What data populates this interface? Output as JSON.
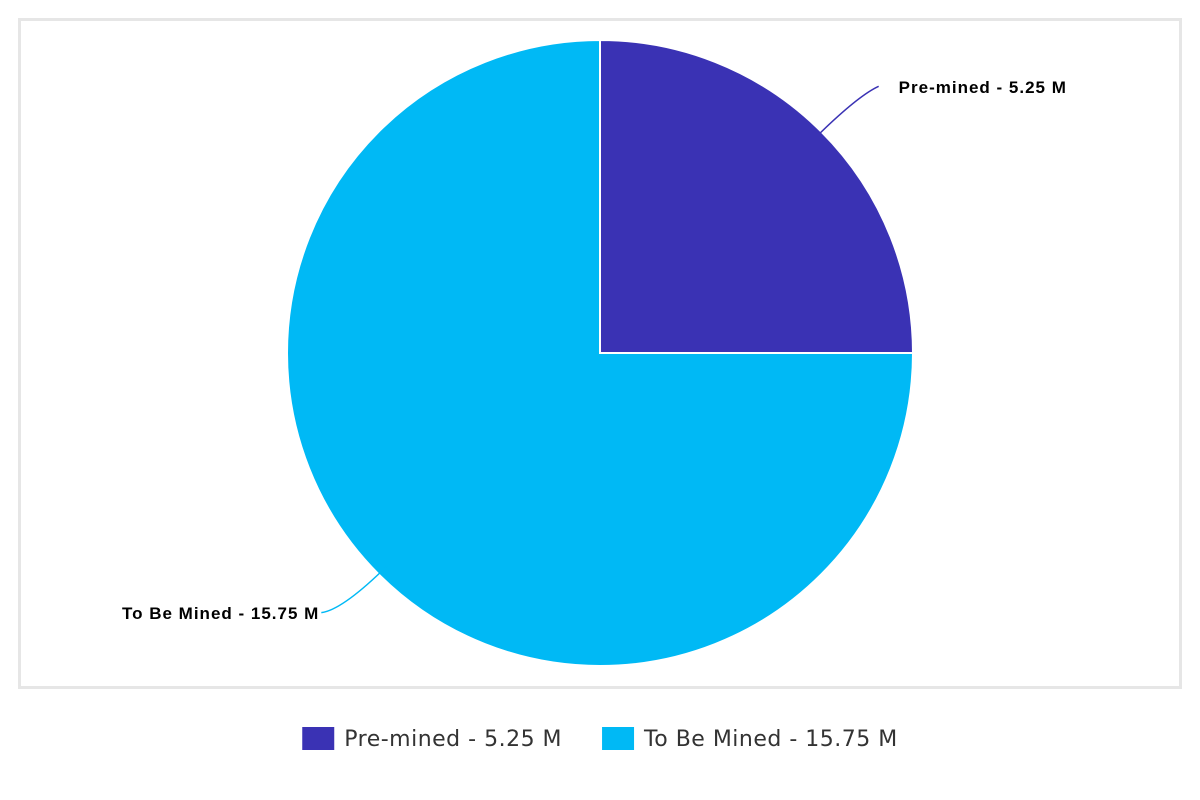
{
  "chart_data": {
    "type": "pie",
    "categories": [
      "Pre-mined - 5.25 M",
      "To Be Mined - 15.75 M"
    ],
    "values": [
      5.25,
      15.75
    ],
    "colors": [
      "#3a32b4",
      "#00b9f5"
    ],
    "legend": "bottom"
  }
}
